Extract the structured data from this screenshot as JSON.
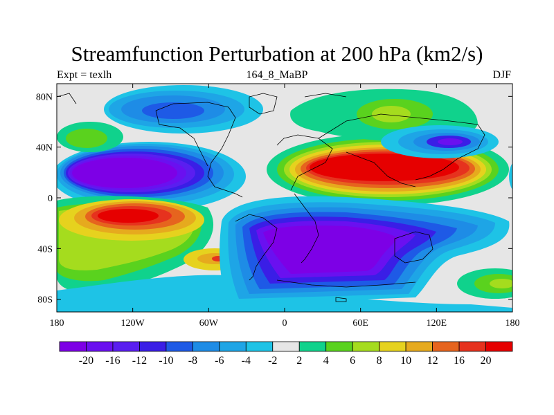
{
  "title": "Streamfunction Perturbation at 200 hPa (km2/s)",
  "left_label": "Expt = texlh",
  "center_label": "164_8_MaBP",
  "right_label": "DJF",
  "map": {
    "lon_range": [
      -180,
      180
    ],
    "lat_range": [
      -90,
      90
    ],
    "x_ticks": [
      {
        "value": -180,
        "label": "180"
      },
      {
        "value": -120,
        "label": "120W"
      },
      {
        "value": -60,
        "label": "60W"
      },
      {
        "value": 0,
        "label": "0"
      },
      {
        "value": 60,
        "label": "60E"
      },
      {
        "value": 120,
        "label": "120E"
      },
      {
        "value": 180,
        "label": "180"
      }
    ],
    "y_ticks": [
      {
        "value": 80,
        "label": "80N"
      },
      {
        "value": 40,
        "label": "40N"
      },
      {
        "value": 0,
        "label": "0"
      },
      {
        "value": -40,
        "label": "40S"
      },
      {
        "value": -80,
        "label": "80S"
      }
    ]
  },
  "colorbar": {
    "colors": [
      "#7d00e6",
      "#6a10f0",
      "#5a1ef0",
      "#3a1ee6",
      "#1e5ae6",
      "#1e8ce6",
      "#1ea5e6",
      "#1ec3e6",
      "#e6e6e6",
      "#10d28c",
      "#5ad21e",
      "#a5dc1e",
      "#e6d21e",
      "#e6aa1e",
      "#e6641e",
      "#e6321e",
      "#e60000"
    ],
    "labels": [
      "-20",
      "-16",
      "-12",
      "-10",
      "-8",
      "-6",
      "-4",
      "-2",
      "2",
      "4",
      "6",
      "8",
      "10",
      "12",
      "16",
      "20"
    ]
  }
}
